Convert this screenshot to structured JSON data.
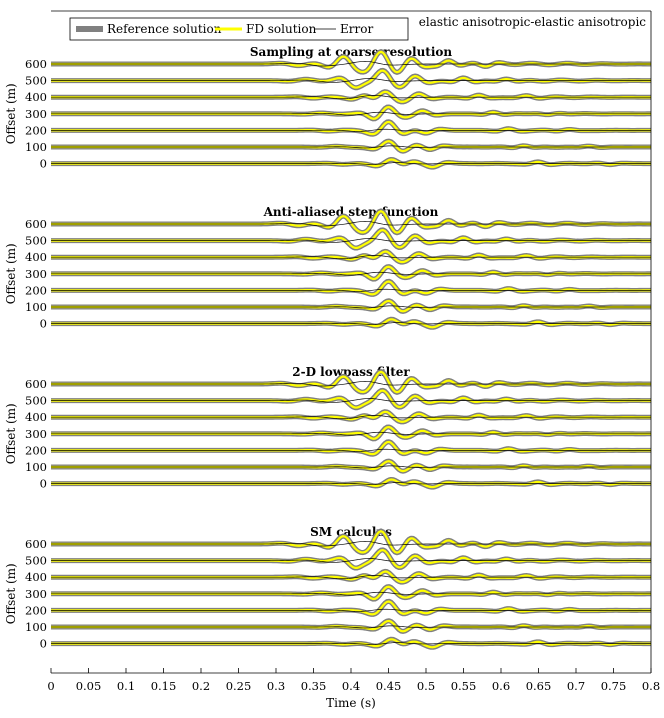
{
  "figure_title": "elastic anisotropic-elastic anisotropic",
  "legend": [
    {
      "label": "Reference solution",
      "color": "#808080"
    },
    {
      "label": "FD solution",
      "color": "#ffff00"
    },
    {
      "label": "Error",
      "color": "#000000"
    }
  ],
  "x_ticks": [
    "0",
    "0.05",
    "0.1",
    "0.15",
    "0.2",
    "0.25",
    "0.3",
    "0.35",
    "0.4",
    "0.45",
    "0.5",
    "0.55",
    "0.6",
    "0.65",
    "0.7",
    "0.75",
    "0.8"
  ],
  "y_ticks": [
    "600",
    "500",
    "400",
    "300",
    "200",
    "100",
    "0"
  ],
  "xlabel": "Time (s)",
  "ylabel": "Offset (m)",
  "chart_data": [
    {
      "type": "line",
      "title": "Sampling at coarse resolution",
      "xlabel": "",
      "ylabel": "Offset (m)",
      "xlim": [
        0,
        0.8
      ],
      "y_offsets": [
        600,
        500,
        400,
        300,
        200,
        100,
        0
      ],
      "series": [
        {
          "name": "Reference solution",
          "color": "#808080"
        },
        {
          "name": "FD solution",
          "color": "#ffff00"
        },
        {
          "name": "Error",
          "color": "#000000"
        }
      ]
    },
    {
      "type": "line",
      "title": "Anti-aliased step-function",
      "xlabel": "",
      "ylabel": "Offset (m)",
      "xlim": [
        0,
        0.8
      ],
      "y_offsets": [
        600,
        500,
        400,
        300,
        200,
        100,
        0
      ],
      "series": [
        {
          "name": "Reference solution",
          "color": "#808080"
        },
        {
          "name": "FD solution",
          "color": "#ffff00"
        },
        {
          "name": "Error",
          "color": "#000000"
        }
      ]
    },
    {
      "type": "line",
      "title": "2-D lowpass filter",
      "xlabel": "",
      "ylabel": "Offset (m)",
      "xlim": [
        0,
        0.8
      ],
      "y_offsets": [
        600,
        500,
        400,
        300,
        200,
        100,
        0
      ],
      "series": [
        {
          "name": "Reference solution",
          "color": "#808080"
        },
        {
          "name": "FD solution",
          "color": "#ffff00"
        },
        {
          "name": "Error",
          "color": "#000000"
        }
      ]
    },
    {
      "type": "line",
      "title": "SM calculus",
      "xlabel": "Time (s)",
      "ylabel": "Offset (m)",
      "xlim": [
        0,
        0.8
      ],
      "y_offsets": [
        600,
        500,
        400,
        300,
        200,
        100,
        0
      ],
      "series": [
        {
          "name": "Reference solution",
          "color": "#808080"
        },
        {
          "name": "FD solution",
          "color": "#ffff00"
        },
        {
          "name": "Error",
          "color": "#000000"
        }
      ]
    }
  ]
}
